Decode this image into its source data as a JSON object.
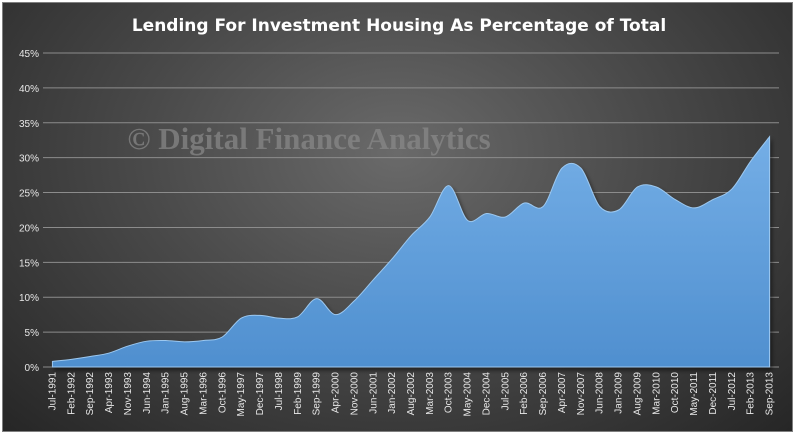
{
  "chart_data": {
    "type": "area",
    "title": "Lending For Investment Housing As Percentage of Total",
    "xlabel": "",
    "ylabel": "",
    "ylim": [
      0,
      45
    ],
    "y_ticks": [
      "0%",
      "5%",
      "10%",
      "15%",
      "20%",
      "25%",
      "30%",
      "35%",
      "40%",
      "45%"
    ],
    "x_tick_labels": [
      "Jul-1991",
      "Feb-1992",
      "Sep-1992",
      "Apr-1993",
      "Nov-1993",
      "Jun-1994",
      "Jan-1995",
      "Aug-1995",
      "Mar-1996",
      "Oct-1996",
      "May-1997",
      "Dec-1997",
      "Jul-1998",
      "Feb-1999",
      "Sep-1999",
      "Apr-2000",
      "Nov-2000",
      "Jun-2001",
      "Jan-2002",
      "Aug-2002",
      "Mar-2003",
      "Oct-2003",
      "May-2004",
      "Dec-2004",
      "Jul-2005",
      "Feb-2006",
      "Sep-2006",
      "Apr-2007",
      "Nov-2007",
      "Jun-2008",
      "Jan-2009",
      "Aug-2009",
      "Mar-2010",
      "Oct-2010",
      "May-2011",
      "Dec-2011",
      "Jul-2012",
      "Feb-2013",
      "Sep-2013"
    ],
    "grid": true,
    "legend": "none",
    "series_color": "#5b9bd5",
    "x": [
      "Jul-1991",
      "Feb-1992",
      "Sep-1992",
      "Apr-1993",
      "Nov-1993",
      "Jun-1994",
      "Jan-1995",
      "Aug-1995",
      "Mar-1996",
      "Oct-1996",
      "May-1997",
      "Dec-1997",
      "Jul-1998",
      "Feb-1999",
      "Sep-1999",
      "Apr-2000",
      "Nov-2000",
      "Jun-2001",
      "Jan-2002",
      "Aug-2002",
      "Mar-2003",
      "Oct-2003",
      "May-2004",
      "Dec-2004",
      "Jul-2005",
      "Feb-2006",
      "Sep-2006",
      "Apr-2007",
      "Nov-2007",
      "Jun-2008",
      "Jan-2009",
      "Aug-2009",
      "Mar-2010",
      "Oct-2010",
      "May-2011",
      "Dec-2011",
      "Jul-2012",
      "Feb-2013",
      "Sep-2013"
    ],
    "series": [
      {
        "values": [
          0.8,
          1.1,
          1.5,
          2.0,
          3.0,
          3.7,
          3.8,
          3.6,
          3.8,
          4.3,
          7.0,
          7.4,
          7.0,
          7.2,
          9.8,
          7.5,
          9.5,
          12.5,
          15.5,
          18.8,
          21.5,
          26.0,
          21.0,
          22.0,
          21.5,
          23.5,
          23.0,
          28.5,
          28.5,
          23.0,
          22.5,
          25.8,
          25.8,
          24.0,
          22.8,
          24.0,
          25.5,
          29.5,
          33.0
        ]
      }
    ],
    "annotations": [
      "© Digital Finance Analytics"
    ]
  }
}
